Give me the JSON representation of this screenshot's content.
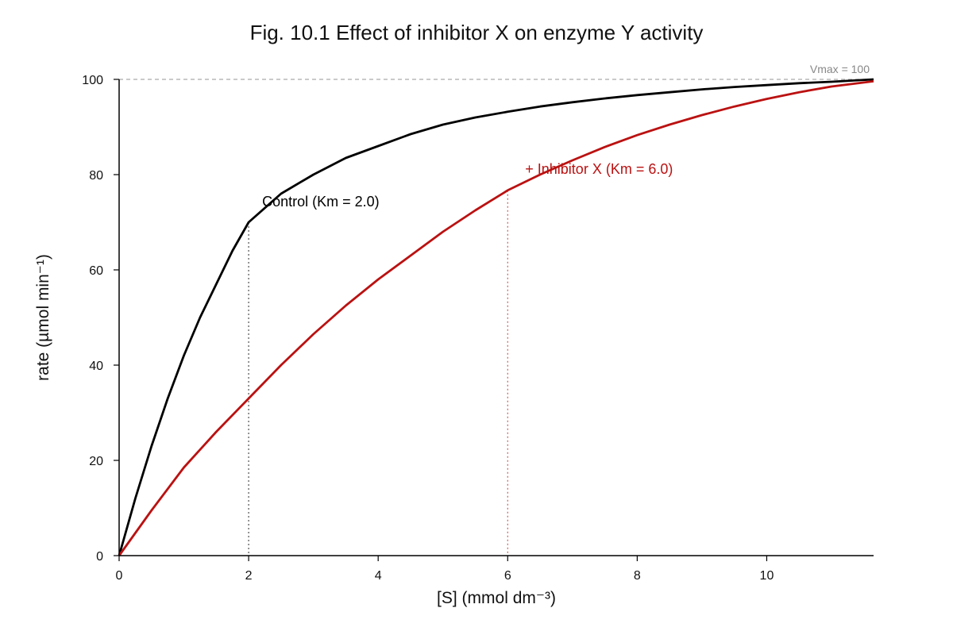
{
  "chart_data": {
    "type": "line",
    "title": "Fig. 10.1 Effect of inhibitor X on enzyme Y activity",
    "xlabel": "[S] (mmol dm⁻³)",
    "ylabel": "rate (µmol min⁻¹)",
    "xlim": [
      0,
      11.65
    ],
    "ylim": [
      0,
      100
    ],
    "x_ticks": [
      0,
      2,
      4,
      6,
      8,
      10
    ],
    "y_ticks": [
      0,
      20,
      40,
      60,
      80,
      100
    ],
    "grid": false,
    "vmax": 100,
    "vmax_label": "Vmax = 100",
    "series": [
      {
        "label": "Control (Km = 2.0)",
        "km": 2.0,
        "color": "#000000",
        "x": [
          0,
          0.25,
          0.5,
          0.75,
          1.0,
          1.25,
          1.5,
          1.75,
          2.0,
          2.5,
          3.0,
          3.5,
          4.0,
          4.5,
          5.0,
          5.5,
          6.0,
          6.5,
          7.0,
          7.5,
          8.0,
          8.5,
          9.0,
          9.5,
          10.0,
          10.5,
          11.0,
          11.65
        ],
        "y": [
          0,
          12,
          23,
          33,
          42,
          50,
          57,
          64,
          70,
          76,
          80,
          83.5,
          86,
          88.5,
          90.5,
          92,
          93.2,
          94.3,
          95.2,
          96,
          96.7,
          97.3,
          97.9,
          98.4,
          98.8,
          99.2,
          99.5,
          100
        ]
      },
      {
        "label": "+ Inhibitor X (Km = 6.0)",
        "km": 6.0,
        "color": "#bb1111",
        "x": [
          0,
          0.5,
          1.0,
          1.5,
          2.0,
          2.5,
          3.0,
          3.5,
          4.0,
          4.5,
          5.0,
          5.5,
          6.0,
          6.5,
          7.0,
          7.5,
          8.0,
          8.5,
          9.0,
          9.5,
          10.0,
          10.5,
          11.0,
          11.65
        ],
        "y": [
          0,
          9.5,
          18.5,
          26,
          33,
          40,
          46.5,
          52.5,
          58,
          63,
          68,
          72.5,
          76.7,
          80,
          83,
          85.8,
          88.3,
          90.5,
          92.5,
          94.3,
          95.9,
          97.3,
          98.5,
          99.6
        ]
      }
    ]
  }
}
